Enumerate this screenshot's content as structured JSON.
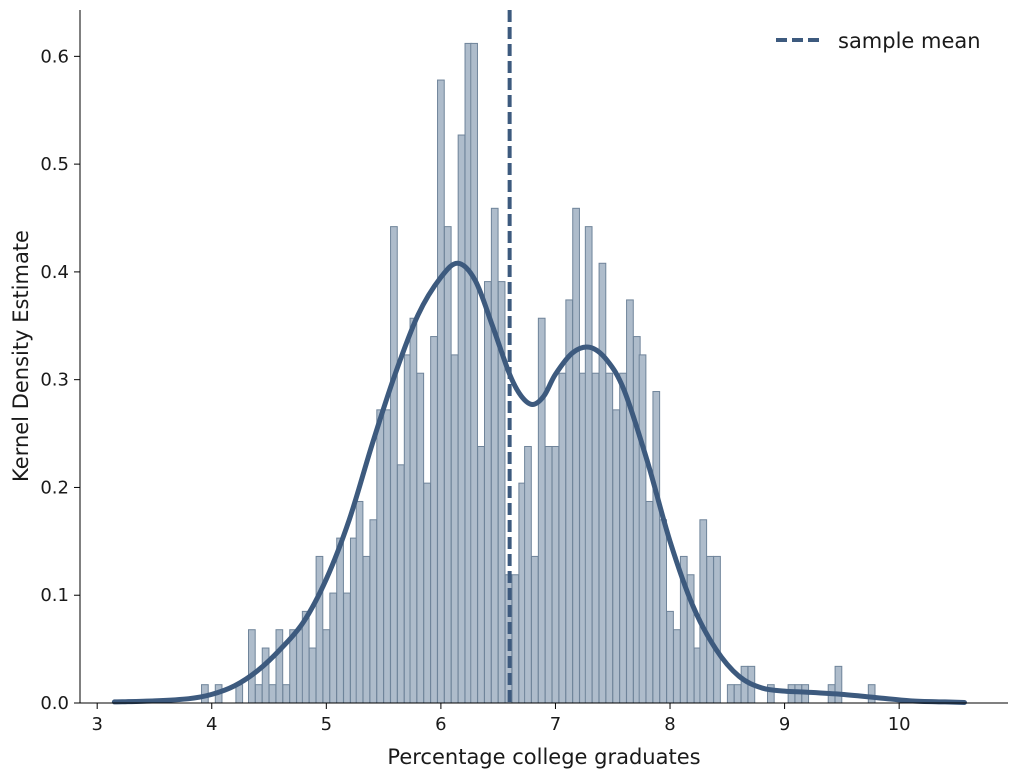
{
  "chart_data": {
    "type": "bar",
    "title": "",
    "xlabel": "Percentage college graduates",
    "ylabel": "Kernel Density Estimate",
    "xlim": [
      2.85,
      10.95
    ],
    "ylim": [
      0.0,
      0.643
    ],
    "xticks": [
      3,
      4,
      5,
      6,
      7,
      8,
      9,
      10
    ],
    "yticks": [
      0.0,
      0.1,
      0.2,
      0.3,
      0.4,
      0.5,
      0.6
    ],
    "xtick_labels": [
      "3",
      "4",
      "5",
      "6",
      "7",
      "8",
      "9",
      "10"
    ],
    "ytick_labels": [
      "0.0",
      "0.1",
      "0.2",
      "0.3",
      "0.4",
      "0.5",
      "0.6"
    ],
    "grid": false,
    "legend": {
      "position": "top-right",
      "entries": [
        "sample mean"
      ]
    },
    "colors": {
      "bar_fill": "#aebccb",
      "bar_edge": "#6f849a",
      "kde_line": "#3d5a7e",
      "mean_line": "#3d5a7e"
    },
    "histogram": {
      "bin_width": 0.0585,
      "bins": [
        [
          3.94,
          0.017
        ],
        [
          4.06,
          0.017
        ],
        [
          4.24,
          0.017
        ],
        [
          4.35,
          0.068
        ],
        [
          4.41,
          0.017
        ],
        [
          4.47,
          0.051
        ],
        [
          4.53,
          0.017
        ],
        [
          4.59,
          0.068
        ],
        [
          4.65,
          0.017
        ],
        [
          4.71,
          0.068
        ],
        [
          4.77,
          0.068
        ],
        [
          4.82,
          0.085
        ],
        [
          4.88,
          0.051
        ],
        [
          4.94,
          0.136
        ],
        [
          5.0,
          0.068
        ],
        [
          5.06,
          0.102
        ],
        [
          5.12,
          0.153
        ],
        [
          5.18,
          0.102
        ],
        [
          5.24,
          0.153
        ],
        [
          5.29,
          0.187
        ],
        [
          5.35,
          0.136
        ],
        [
          5.41,
          0.17
        ],
        [
          5.47,
          0.272
        ],
        [
          5.53,
          0.272
        ],
        [
          5.59,
          0.442
        ],
        [
          5.65,
          0.221
        ],
        [
          5.71,
          0.323
        ],
        [
          5.76,
          0.357
        ],
        [
          5.82,
          0.306
        ],
        [
          5.88,
          0.204
        ],
        [
          5.94,
          0.34
        ],
        [
          6.0,
          0.578
        ],
        [
          6.06,
          0.442
        ],
        [
          6.12,
          0.323
        ],
        [
          6.18,
          0.527
        ],
        [
          6.24,
          0.612
        ],
        [
          6.29,
          0.612
        ],
        [
          6.35,
          0.238
        ],
        [
          6.41,
          0.391
        ],
        [
          6.47,
          0.459
        ],
        [
          6.53,
          0.391
        ],
        [
          6.59,
          0.119
        ],
        [
          6.65,
          0.119
        ],
        [
          6.71,
          0.204
        ],
        [
          6.76,
          0.238
        ],
        [
          6.82,
          0.136
        ],
        [
          6.88,
          0.357
        ],
        [
          6.94,
          0.238
        ],
        [
          7.0,
          0.238
        ],
        [
          7.06,
          0.306
        ],
        [
          7.12,
          0.374
        ],
        [
          7.18,
          0.459
        ],
        [
          7.24,
          0.306
        ],
        [
          7.29,
          0.442
        ],
        [
          7.35,
          0.306
        ],
        [
          7.41,
          0.408
        ],
        [
          7.47,
          0.306
        ],
        [
          7.53,
          0.272
        ],
        [
          7.59,
          0.306
        ],
        [
          7.65,
          0.374
        ],
        [
          7.71,
          0.34
        ],
        [
          7.76,
          0.323
        ],
        [
          7.82,
          0.187
        ],
        [
          7.88,
          0.289
        ],
        [
          7.94,
          0.17
        ],
        [
          8.0,
          0.085
        ],
        [
          8.06,
          0.068
        ],
        [
          8.12,
          0.136
        ],
        [
          8.18,
          0.119
        ],
        [
          8.24,
          0.051
        ],
        [
          8.29,
          0.17
        ],
        [
          8.35,
          0.136
        ],
        [
          8.41,
          0.136
        ],
        [
          8.53,
          0.017
        ],
        [
          8.59,
          0.017
        ],
        [
          8.65,
          0.034
        ],
        [
          8.71,
          0.034
        ],
        [
          8.88,
          0.017
        ],
        [
          9.06,
          0.017
        ],
        [
          9.12,
          0.017
        ],
        [
          9.18,
          0.017
        ],
        [
          9.41,
          0.017
        ],
        [
          9.47,
          0.034
        ],
        [
          9.76,
          0.017
        ]
      ]
    },
    "kde": {
      "x": [
        3.15,
        3.5,
        3.8,
        4.0,
        4.2,
        4.4,
        4.6,
        4.8,
        5.0,
        5.2,
        5.4,
        5.6,
        5.8,
        6.0,
        6.15,
        6.3,
        6.45,
        6.6,
        6.7,
        6.8,
        6.9,
        7.0,
        7.15,
        7.3,
        7.45,
        7.6,
        7.8,
        8.0,
        8.2,
        8.4,
        8.6,
        8.8,
        9.0,
        9.2,
        9.5,
        9.8,
        10.1,
        10.4,
        10.57
      ],
      "y": [
        0.001,
        0.002,
        0.004,
        0.008,
        0.016,
        0.03,
        0.05,
        0.075,
        0.115,
        0.17,
        0.24,
        0.305,
        0.36,
        0.395,
        0.408,
        0.392,
        0.35,
        0.305,
        0.285,
        0.277,
        0.285,
        0.305,
        0.325,
        0.33,
        0.318,
        0.29,
        0.225,
        0.15,
        0.09,
        0.05,
        0.025,
        0.014,
        0.011,
        0.01,
        0.008,
        0.005,
        0.002,
        0.001,
        0.0005
      ]
    },
    "mean_line": {
      "x": 6.6,
      "label": "sample mean"
    }
  }
}
